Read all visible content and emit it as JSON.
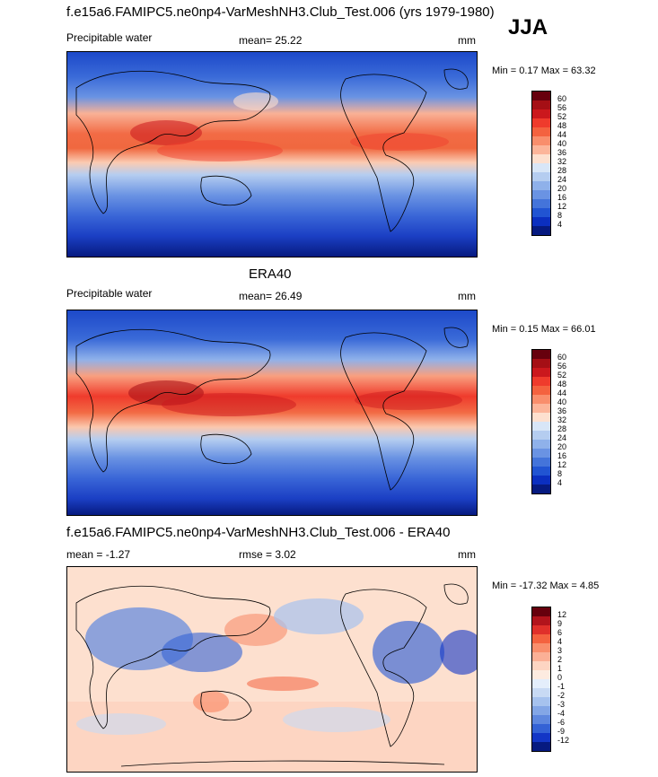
{
  "header": {
    "run_title": "f.e15a6.FAMIPC5.ne0np4-VarMeshNH3.Club_Test.006 (yrs 1979-1980)",
    "season": "JJA"
  },
  "panels": [
    {
      "id": "model",
      "heading": "",
      "variable": "Precipitable water",
      "stat": "mean=  25.22",
      "units": "mm",
      "minmax": "Min =  0.17 Max =  63.32",
      "legend_labels": [
        "60",
        "56",
        "52",
        "48",
        "44",
        "40",
        "36",
        "32",
        "28",
        "24",
        "20",
        "16",
        "12",
        "8",
        "4"
      ]
    },
    {
      "id": "obs",
      "heading": "ERA40",
      "variable": "Precipitable water",
      "stat": "mean=  26.49",
      "units": "mm",
      "minmax": "Min =  0.15 Max =  66.01",
      "legend_labels": [
        "60",
        "56",
        "52",
        "48",
        "44",
        "40",
        "36",
        "32",
        "28",
        "24",
        "20",
        "16",
        "12",
        "8",
        "4"
      ]
    },
    {
      "id": "diff",
      "heading": "f.e15a6.FAMIPC5.ne0np4-VarMeshNH3.Club_Test.006 - ERA40",
      "stat_left": "mean =  -1.27",
      "stat": "rmse =   3.02",
      "units": "mm",
      "minmax": "Min = -17.32 Max =   4.85",
      "legend_labels": [
        "12",
        "9",
        "6",
        "4",
        "3",
        "2",
        "1",
        "0",
        "-1",
        "-2",
        "-3",
        "-4",
        "-6",
        "-9",
        "-12"
      ]
    }
  ],
  "colors": {
    "seq_palette": [
      "#67000d",
      "#a50f15",
      "#cb181d",
      "#ef3b2c",
      "#f4623f",
      "#f98e6c",
      "#fcb59a",
      "#fde0cf",
      "#d8e6f7",
      "#b5cdf0",
      "#8fb1ea",
      "#6a93e3",
      "#4474da",
      "#2154d2",
      "#0b2fc0",
      "#061a80"
    ],
    "diff_palette": [
      "#67000d",
      "#b2141c",
      "#e0302a",
      "#f4623f",
      "#f98e6c",
      "#fbb096",
      "#fdd5c2",
      "#fdebe0",
      "#e4eefb",
      "#c8daf4",
      "#a6c2ee",
      "#83a6e6",
      "#5e87de",
      "#3462d5",
      "#1336c6",
      "#061a80"
    ],
    "coast": "#000000"
  }
}
